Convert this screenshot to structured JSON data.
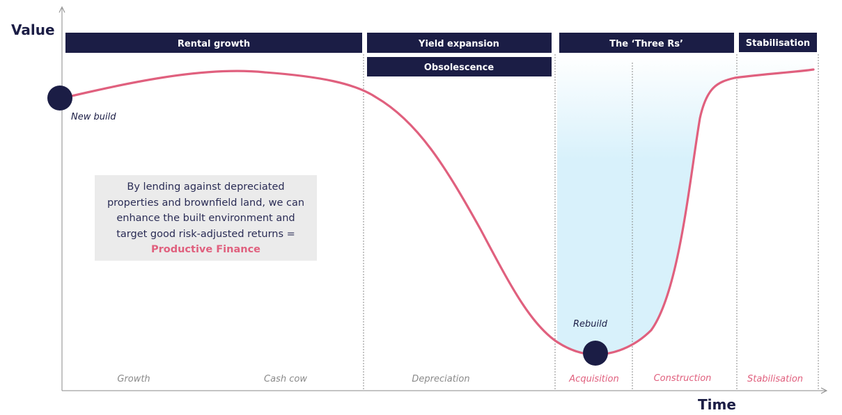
{
  "axes": {
    "y_title": "Value",
    "x_title": "Time"
  },
  "banners": {
    "rental_growth": "Rental growth",
    "yield_expansion": "Yield expansion",
    "obsolescence": "Obsolescence",
    "three_rs": "The ‘Three Rs’",
    "stabilisation": "Stabilisation"
  },
  "points": {
    "new_build": "New build",
    "rebuild": "Rebuild"
  },
  "phases": {
    "growth": "Growth",
    "cash_cow": "Cash cow",
    "depreciation": "Depreciation",
    "acquisition": "Acquisition",
    "construction": "Construction",
    "stabilisation": "Stabilisation"
  },
  "callout": {
    "text": "By lending against depreciated properties and brownfield land, we can enhance the built environment and target good risk-adjusted returns = ",
    "highlight": "Productive Finance"
  },
  "colors": {
    "navy": "#1b1d45",
    "curve": "#e0607e",
    "fill_light": "#d8f1fb",
    "callout_bg": "#ebebeb"
  }
}
